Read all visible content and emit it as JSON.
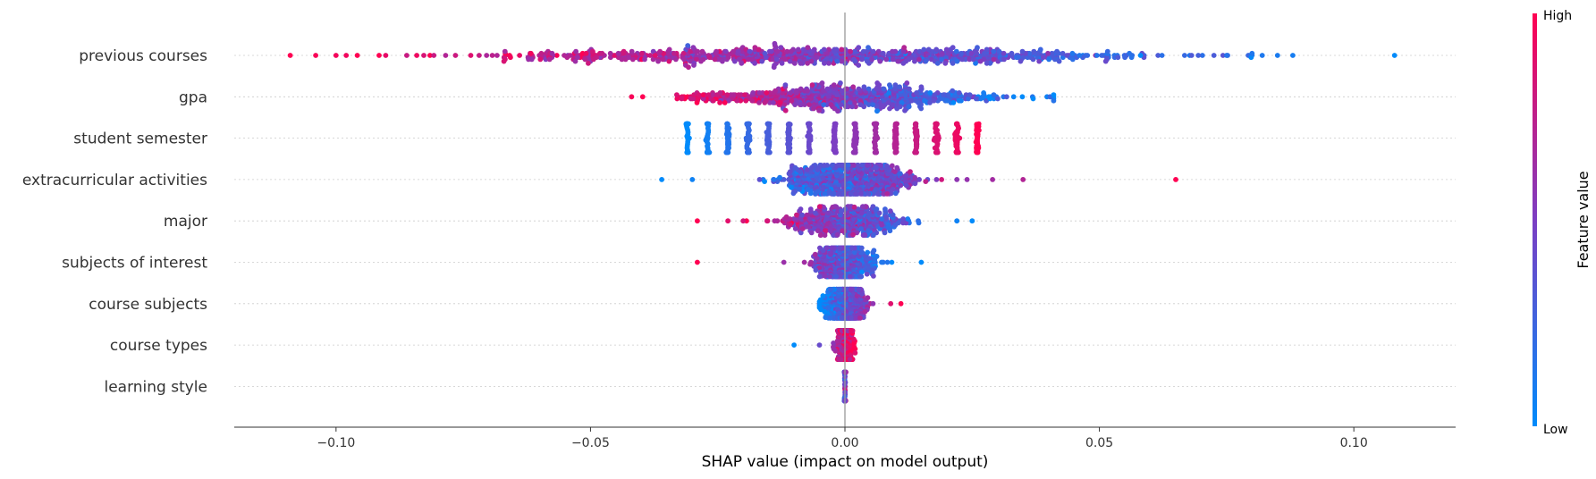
{
  "chart_data": {
    "type": "scatter",
    "subtype": "shap-beeswarm",
    "title": "",
    "xlabel": "SHAP value (impact on model output)",
    "xlim": [
      -0.12,
      0.12
    ],
    "xticks": [
      -0.1,
      -0.05,
      0.0,
      0.05,
      0.1
    ],
    "xtick_labels": [
      "−0.10",
      "−0.05",
      "0.00",
      "0.05",
      "0.10"
    ],
    "colorbar": {
      "title": "Feature value",
      "high_label": "High",
      "low_label": "Low",
      "low_color": "#008bfb",
      "high_color": "#ff0052"
    },
    "features": [
      {
        "name": "previous courses",
        "min": -0.109,
        "max": 0.108,
        "spread": 0.06,
        "center": -0.004,
        "outliers": [
          -0.109,
          -0.104,
          -0.1,
          -0.098,
          0.075,
          0.08,
          0.082,
          0.085,
          0.088,
          0.108
        ]
      },
      {
        "name": "gpa",
        "min": -0.042,
        "max": 0.041,
        "spread": 0.03,
        "center": 0.0,
        "outliers": []
      },
      {
        "name": "student semester",
        "discrete": [
          -0.031,
          -0.027,
          -0.023,
          -0.019,
          -0.015,
          -0.011,
          -0.007,
          -0.002,
          0.002,
          0.006,
          0.01,
          0.014,
          0.018,
          0.022,
          0.026
        ]
      },
      {
        "name": "extracurricular activities",
        "min": -0.036,
        "max": 0.065,
        "spread": 0.012,
        "center": 0.001,
        "outliers": [
          -0.036,
          -0.03,
          0.022,
          0.024,
          0.029,
          0.035,
          0.065
        ]
      },
      {
        "name": "major",
        "min": -0.029,
        "max": 0.025,
        "spread": 0.011,
        "center": 0.0,
        "outliers": [
          -0.029,
          -0.023,
          -0.02,
          0.022,
          0.025
        ]
      },
      {
        "name": "subjects of interest",
        "min": -0.029,
        "max": 0.015,
        "spread": 0.006,
        "center": 0.0,
        "outliers": [
          -0.029,
          -0.012,
          0.015
        ]
      },
      {
        "name": "course subjects",
        "min": -0.005,
        "max": 0.011,
        "spread": 0.004,
        "center": 0.0,
        "outliers": [
          0.009,
          0.011
        ]
      },
      {
        "name": "course types",
        "min": -0.01,
        "max": 0.002,
        "spread": 0.0015,
        "center": 0.0,
        "outliers": [
          -0.01,
          -0.005
        ]
      },
      {
        "name": "learning style",
        "min": -0.0003,
        "max": 0.0003,
        "spread": 0.0001,
        "center": 0.0,
        "outliers": []
      }
    ]
  }
}
